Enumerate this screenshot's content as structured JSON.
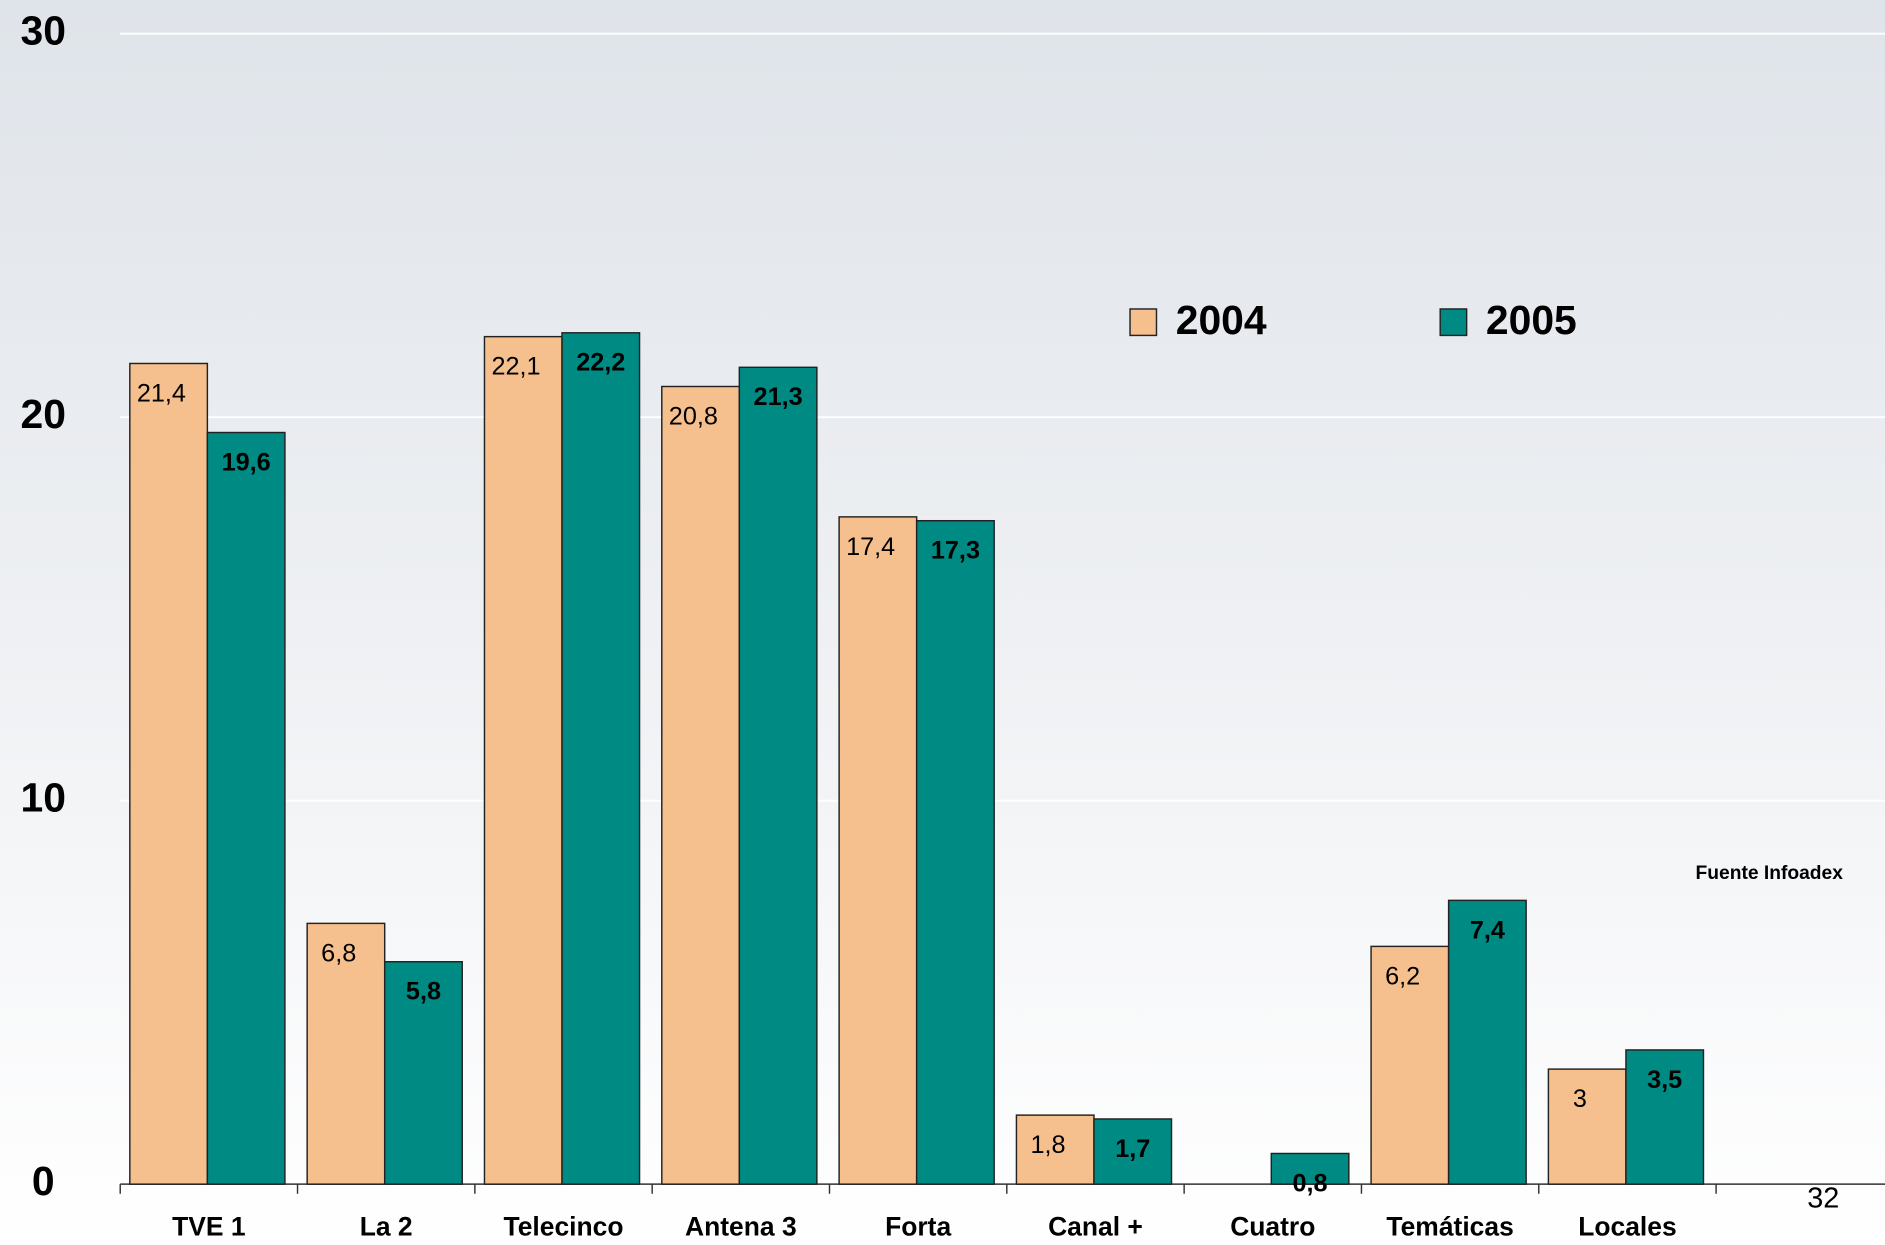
{
  "chart_data": {
    "type": "bar",
    "categories": [
      "TVE 1",
      "La 2",
      "Telecinco",
      "Antena 3",
      "Forta",
      "Canal +",
      "Cuatro",
      "Temáticas",
      "Locales",
      null
    ],
    "series": [
      {
        "name": "2004",
        "color": "#f6c08e",
        "values": [
          21.4,
          6.8,
          22.1,
          20.8,
          17.4,
          1.8,
          null,
          6.2,
          3,
          null
        ],
        "value_labels": [
          "21,4",
          "6,8",
          "22,1",
          "20,8",
          "17,4",
          "1,8",
          null,
          "6,2",
          "3",
          null
        ]
      },
      {
        "name": "2005",
        "color": "#008a84",
        "values": [
          19.6,
          5.8,
          22.2,
          21.3,
          17.3,
          1.7,
          0.8,
          7.4,
          3.5,
          null
        ],
        "value_labels": [
          "19,6",
          "5,8",
          "22,2",
          "21,3",
          "17,3",
          "1,7",
          "0,8",
          "7,4",
          "3,5",
          null
        ]
      }
    ],
    "ylim": [
      0,
      30
    ],
    "yticks": [
      0,
      10,
      20,
      30
    ],
    "grid": true,
    "legend": "upper right",
    "annotations": [
      "Fuente Infoadex",
      "32"
    ]
  }
}
